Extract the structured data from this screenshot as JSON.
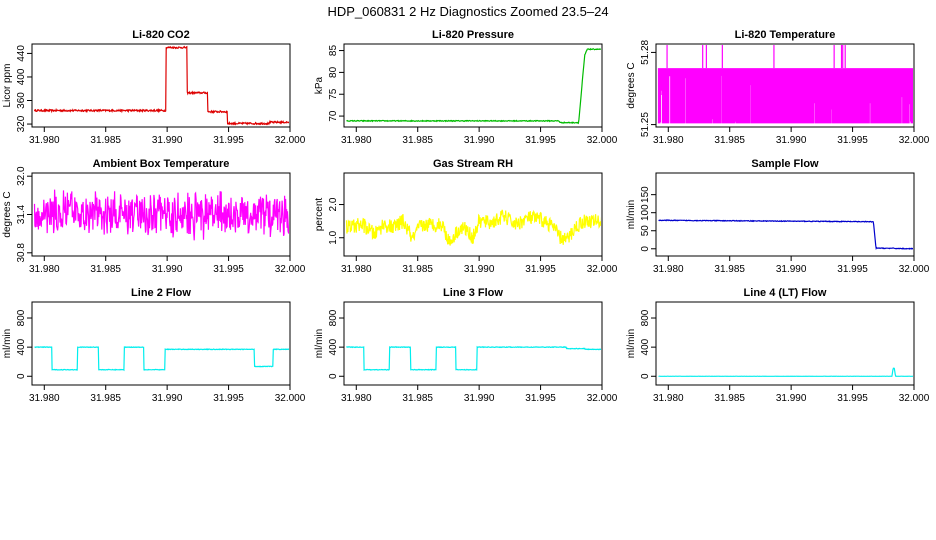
{
  "page": {
    "title": "HDP_060831  2 Hz Diagnostics Zoomed 23.5–24"
  },
  "colors": {
    "red": "#dd0000",
    "green": "#00bb00",
    "magenta": "#ff00ff",
    "yellow": "#ffff00",
    "blue": "#0000cc",
    "cyan": "#00eeee",
    "axis": "#000000"
  },
  "chart_data": [
    {
      "type": "line",
      "title": "Li-820 CO2",
      "ylabel": "Licor ppm",
      "color": "red",
      "xlim": [
        31.979,
        32.0
      ],
      "ylim": [
        315,
        456
      ],
      "xticks": [
        31.98,
        31.985,
        31.99,
        31.995,
        32.0
      ],
      "xtick_labels": [
        "31.980",
        "31.985",
        "31.990",
        "31.995",
        "32.000"
      ],
      "yticks": [
        320,
        360,
        400,
        440
      ],
      "ytick_labels": [
        "320",
        "360",
        "400",
        "440"
      ],
      "step": true,
      "noise": 1.5,
      "series": [
        {
          "x": [
            31.979,
            31.9898,
            31.9899,
            31.9915,
            31.9916,
            31.9932,
            31.9933,
            31.9948,
            31.9949,
            31.9982,
            31.9983,
            32.0
          ],
          "values": [
            343,
            343,
            450,
            450,
            373,
            373,
            341,
            341,
            321,
            321,
            323,
            323
          ]
        }
      ]
    },
    {
      "type": "line",
      "title": "Li-820 Pressure",
      "ylabel": "kPa",
      "color": "green",
      "xlim": [
        31.979,
        32.0
      ],
      "ylim": [
        67.5,
        86.5
      ],
      "xticks": [
        31.98,
        31.985,
        31.99,
        31.995,
        32.0
      ],
      "xtick_labels": [
        "31.980",
        "31.985",
        "31.990",
        "31.995",
        "32.000"
      ],
      "yticks": [
        70,
        75,
        80,
        85
      ],
      "ytick_labels": [
        "70",
        "75",
        "80",
        "85"
      ],
      "step": false,
      "noise": 0.1,
      "series": [
        {
          "x": [
            31.979,
            31.9965,
            31.9966,
            31.9981,
            31.9984,
            31.9986,
            31.9988,
            32.0
          ],
          "values": [
            68.9,
            68.9,
            68.5,
            68.5,
            78,
            84,
            85.3,
            85.3
          ]
        }
      ]
    },
    {
      "type": "line",
      "title": "Li-820 Temperature",
      "ylabel": "degrees C",
      "color": "magenta",
      "xlim": [
        31.979,
        32.0
      ],
      "ylim": [
        51.249,
        51.2835
      ],
      "xticks": [
        31.98,
        31.985,
        31.99,
        31.995,
        32.0
      ],
      "xtick_labels": [
        "31.980",
        "31.985",
        "31.990",
        "31.995",
        "32.000"
      ],
      "yticks": [
        51.25,
        51.28
      ],
      "ytick_labels": [
        "51.25",
        "51.28"
      ],
      "band": true,
      "band_low": 51.2505,
      "band_high": 51.2735,
      "spikes": [
        31.9799,
        31.9828,
        31.9831,
        31.9844,
        31.9886,
        31.9935,
        31.9941,
        31.9942,
        31.9944
      ],
      "spike_high": 51.2835
    },
    {
      "type": "line",
      "title": "Ambient Box Temperature",
      "ylabel": "degrees C",
      "color": "magenta",
      "xlim": [
        31.979,
        32.0
      ],
      "ylim": [
        30.75,
        32.05
      ],
      "xticks": [
        31.98,
        31.985,
        31.99,
        31.995,
        32.0
      ],
      "xtick_labels": [
        "31.980",
        "31.985",
        "31.990",
        "31.995",
        "32.000"
      ],
      "yticks": [
        30.8,
        31.4,
        32.0
      ],
      "ytick_labels": [
        "30.8",
        "31.4",
        "32.0"
      ],
      "noise_series": true,
      "center": 31.4,
      "spread": 0.42
    },
    {
      "type": "line",
      "title": "Gas Stream RH",
      "ylabel": "percent",
      "color": "yellow",
      "xlim": [
        31.979,
        32.0
      ],
      "ylim": [
        0.45,
        2.95
      ],
      "xticks": [
        31.98,
        31.985,
        31.99,
        31.995,
        32.0
      ],
      "xtick_labels": [
        "31.980",
        "31.985",
        "31.990",
        "31.995",
        "32.000"
      ],
      "yticks": [
        1.0,
        2.0
      ],
      "ytick_labels": [
        "1.0",
        "2.0"
      ],
      "step": false,
      "noise": 0.22,
      "series": [
        {
          "x": [
            31.979,
            31.9805,
            31.9815,
            31.9822,
            31.983,
            31.9838,
            31.9846,
            31.9852,
            31.986,
            31.987,
            31.9876,
            31.9882,
            31.9888,
            31.9895,
            31.99,
            31.991,
            31.992,
            31.993,
            31.994,
            31.995,
            31.996,
            31.9966,
            31.9972,
            31.9978,
            31.9985,
            32.0
          ],
          "values": [
            1.3,
            1.4,
            1.1,
            1.4,
            1.3,
            1.5,
            0.95,
            1.35,
            1.4,
            1.4,
            0.85,
            1.2,
            1.3,
            1.0,
            1.5,
            1.45,
            1.65,
            1.4,
            1.6,
            1.55,
            1.35,
            1.0,
            0.95,
            1.3,
            1.5,
            1.5
          ]
        }
      ]
    },
    {
      "type": "line",
      "title": "Sample Flow",
      "ylabel": "ml/min",
      "color": "blue",
      "xlim": [
        31.979,
        32.0
      ],
      "ylim": [
        -20,
        210
      ],
      "xticks": [
        31.98,
        31.985,
        31.99,
        31.995,
        32.0
      ],
      "xtick_labels": [
        "31.980",
        "31.985",
        "31.990",
        "31.995",
        "32.000"
      ],
      "yticks": [
        0,
        50,
        100,
        150
      ],
      "ytick_labels": [
        "0",
        "50",
        "100",
        "150"
      ],
      "step": false,
      "noise": 1.0,
      "series": [
        {
          "x": [
            31.979,
            31.9965,
            31.9967,
            31.9969,
            32.0
          ],
          "values": [
            79,
            75,
            74,
            2,
            0
          ]
        }
      ]
    },
    {
      "type": "line",
      "title": "Line 2 Flow",
      "ylabel": "ml/min",
      "color": "cyan",
      "xlim": [
        31.979,
        32.0
      ],
      "ylim": [
        -120,
        1020
      ],
      "xticks": [
        31.98,
        31.985,
        31.99,
        31.995,
        32.0
      ],
      "xtick_labels": [
        "31.980",
        "31.985",
        "31.990",
        "31.995",
        "32.000"
      ],
      "yticks": [
        0,
        400,
        800
      ],
      "ytick_labels": [
        "0",
        "400",
        "800"
      ],
      "step": true,
      "noise": 4,
      "series": [
        {
          "x": [
            31.979,
            31.9805,
            31.9806,
            31.9826,
            31.9827,
            31.9843,
            31.9844,
            31.9864,
            31.9865,
            31.988,
            31.9881,
            31.9897,
            31.9898,
            31.997,
            31.9971,
            31.9985,
            31.9986,
            32.0
          ],
          "values": [
            400,
            400,
            90,
            90,
            400,
            400,
            90,
            90,
            400,
            400,
            90,
            90,
            370,
            370,
            135,
            135,
            370,
            370
          ]
        }
      ]
    },
    {
      "type": "line",
      "title": "Line 3 Flow",
      "ylabel": "ml/min",
      "color": "cyan",
      "xlim": [
        31.979,
        32.0
      ],
      "ylim": [
        -120,
        1020
      ],
      "xticks": [
        31.98,
        31.985,
        31.99,
        31.995,
        32.0
      ],
      "xtick_labels": [
        "31.980",
        "31.985",
        "31.990",
        "31.995",
        "32.000"
      ],
      "yticks": [
        0,
        400,
        800
      ],
      "ytick_labels": [
        "0",
        "400",
        "800"
      ],
      "step": true,
      "noise": 4,
      "series": [
        {
          "x": [
            31.979,
            31.9805,
            31.9806,
            31.9826,
            31.9827,
            31.9843,
            31.9844,
            31.9864,
            31.9865,
            31.988,
            31.9881,
            31.9897,
            31.9898,
            31.997,
            31.9971,
            31.9985,
            31.9986,
            32.0
          ],
          "values": [
            400,
            400,
            90,
            90,
            400,
            400,
            90,
            90,
            400,
            400,
            90,
            90,
            400,
            400,
            380,
            380,
            370,
            370
          ]
        }
      ]
    },
    {
      "type": "line",
      "title": "Line 4 (LT) Flow",
      "ylabel": "ml/min",
      "color": "cyan",
      "xlim": [
        31.979,
        32.0
      ],
      "ylim": [
        -120,
        1020
      ],
      "xticks": [
        31.98,
        31.985,
        31.99,
        31.995,
        32.0
      ],
      "xtick_labels": [
        "31.980",
        "31.985",
        "31.990",
        "31.995",
        "32.000"
      ],
      "yticks": [
        0,
        400,
        800
      ],
      "ytick_labels": [
        "0",
        "400",
        "800"
      ],
      "step": false,
      "noise": 0.5,
      "series": [
        {
          "x": [
            31.979,
            31.9982,
            31.9983,
            31.9984,
            31.9985,
            32.0
          ],
          "values": [
            0,
            0,
            110,
            110,
            0,
            0
          ]
        }
      ]
    }
  ]
}
